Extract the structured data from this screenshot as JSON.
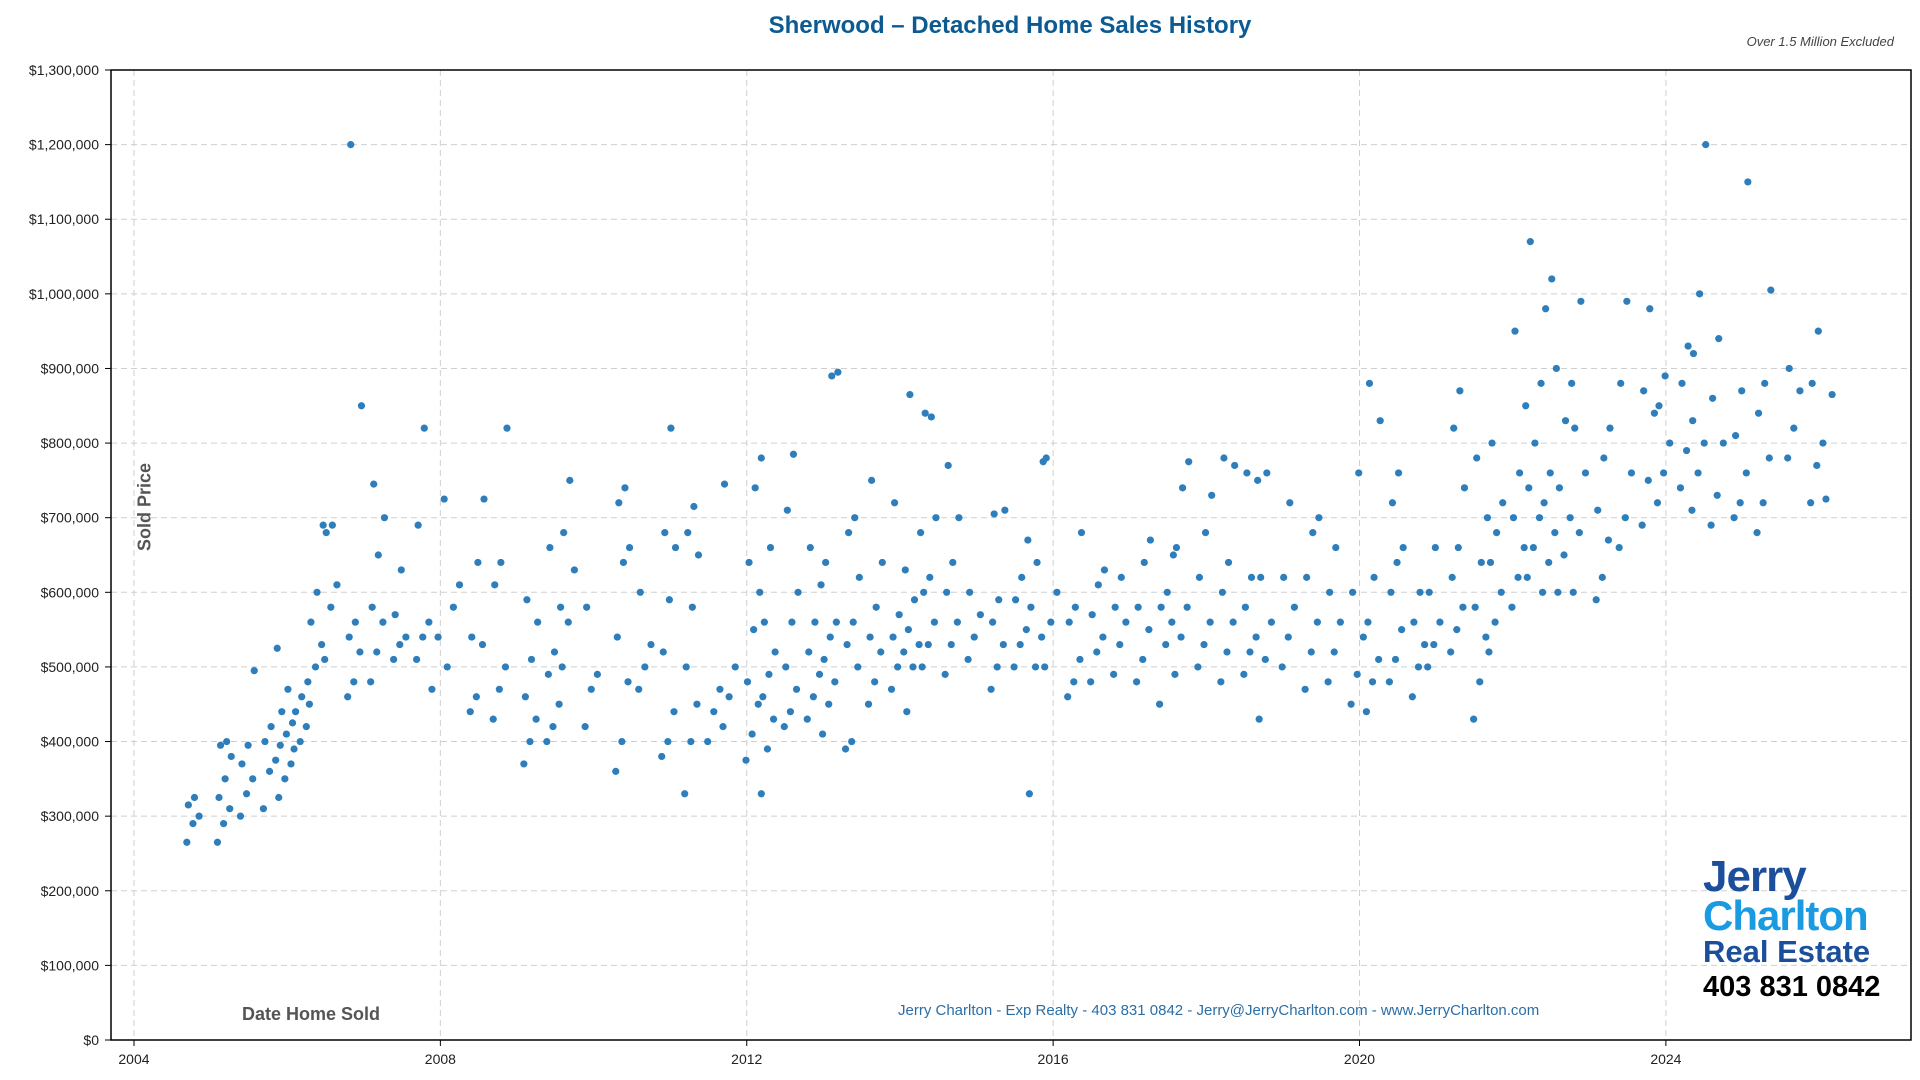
{
  "title": "Sherwood – Detached Home Sales History",
  "note": "Over 1.5 Million Excluded",
  "footer": "Jerry Charlton - Exp Realty - 403 831 0842 - Jerry@JerryCharlton.com - www.JerryCharlton.com",
  "logo": {
    "line1": "Jerry",
    "line2": "Charlton",
    "line3": "Real Estate",
    "phone": "403 831 0842"
  },
  "chart_data": {
    "type": "scatter",
    "title": "Sherwood – Detached Home Sales History",
    "xlabel": "Date Home Sold",
    "ylabel": "Sold Price",
    "xlim": [
      2003.7,
      2027.2
    ],
    "ylim": [
      0,
      1300000
    ],
    "grid": true,
    "color": "#2e7ebc",
    "x_ticks": [
      "2004",
      "2008",
      "2012",
      "2016",
      "2020",
      "2024"
    ],
    "x_tick_values": [
      2004,
      2008,
      2012,
      2016,
      2020,
      2024
    ],
    "y_ticks": [
      "$0",
      "$100,000",
      "$200,000",
      "$300,000",
      "$400,000",
      "$500,000",
      "$600,000",
      "$700,000",
      "$800,000",
      "$900,000",
      "$1,000,000",
      "$1,100,000",
      "$1,200,000",
      "$1,300,000"
    ],
    "y_tick_values": [
      0,
      100000,
      200000,
      300000,
      400000,
      500000,
      600000,
      700000,
      800000,
      900000,
      1000000,
      1100000,
      1200000,
      1300000
    ],
    "point_groups": [
      [
        2004.8,
        [
          265000,
          290000,
          300000,
          315000,
          325000
        ]
      ],
      [
        2005.2,
        [
          265000,
          290000,
          310000,
          325000,
          350000,
          380000,
          395000,
          400000
        ]
      ],
      [
        2005.5,
        [
          300000,
          330000,
          350000,
          370000,
          395000,
          495000
        ]
      ],
      [
        2005.8,
        [
          310000,
          360000,
          375000,
          400000,
          420000,
          525000
        ]
      ],
      [
        2006.0,
        [
          325000,
          350000,
          370000,
          395000,
          410000,
          425000,
          440000,
          470000
        ]
      ],
      [
        2006.2,
        [
          390000,
          400000,
          420000,
          440000,
          460000,
          480000
        ]
      ],
      [
        2006.4,
        [
          450000,
          500000,
          530000,
          560000,
          600000,
          690000
        ]
      ],
      [
        2006.6,
        [
          510000,
          580000,
          610000,
          680000,
          690000
        ]
      ],
      [
        2006.9,
        [
          460000,
          480000,
          520000,
          540000,
          560000,
          850000,
          1200000
        ]
      ],
      [
        2007.2,
        [
          480000,
          520000,
          560000,
          580000,
          650000,
          700000,
          745000
        ]
      ],
      [
        2007.5,
        [
          510000,
          530000,
          540000,
          570000,
          630000
        ]
      ],
      [
        2007.8,
        [
          510000,
          540000,
          560000,
          690000,
          820000
        ]
      ],
      [
        2008.0,
        [
          470000,
          540000,
          725000
        ]
      ],
      [
        2008.2,
        [
          500000,
          580000,
          610000
        ]
      ],
      [
        2008.5,
        [
          440000,
          460000,
          530000,
          540000,
          640000,
          725000
        ]
      ],
      [
        2008.8,
        [
          430000,
          470000,
          500000,
          610000,
          640000,
          820000
        ]
      ],
      [
        2009.2,
        [
          370000,
          400000,
          430000,
          460000,
          510000,
          560000,
          590000
        ]
      ],
      [
        2009.5,
        [
          400000,
          420000,
          450000,
          490000,
          520000,
          580000,
          660000
        ]
      ],
      [
        2009.7,
        [
          500000,
          560000,
          630000,
          680000,
          750000
        ]
      ],
      [
        2010.0,
        [
          420000,
          470000,
          490000,
          580000
        ]
      ],
      [
        2010.4,
        [
          360000,
          400000,
          480000,
          540000,
          640000,
          660000,
          720000,
          740000
        ]
      ],
      [
        2010.7,
        [
          470000,
          500000,
          530000,
          600000
        ]
      ],
      [
        2011.0,
        [
          380000,
          400000,
          440000,
          520000,
          590000,
          660000,
          680000,
          820000
        ]
      ],
      [
        2011.3,
        [
          330000,
          400000,
          450000,
          500000,
          580000,
          650000,
          680000,
          715000
        ]
      ],
      [
        2011.6,
        [
          400000,
          440000,
          470000
        ]
      ],
      [
        2011.8,
        [
          420000,
          460000,
          500000,
          745000
        ]
      ],
      [
        2012.1,
        [
          375000,
          410000,
          450000,
          480000,
          550000,
          600000,
          640000,
          740000,
          780000
        ]
      ],
      [
        2012.3,
        [
          330000,
          390000,
          430000,
          460000,
          490000,
          520000,
          560000,
          660000
        ]
      ],
      [
        2012.6,
        [
          420000,
          440000,
          470000,
          500000,
          560000,
          600000,
          710000,
          785000
        ]
      ],
      [
        2012.9,
        [
          430000,
          460000,
          490000,
          520000,
          560000,
          610000,
          660000
        ]
      ],
      [
        2013.1,
        [
          410000,
          450000,
          480000,
          510000,
          540000,
          560000,
          640000,
          890000,
          895000
        ]
      ],
      [
        2013.4,
        [
          390000,
          400000,
          500000,
          530000,
          560000,
          620000,
          680000,
          700000
        ]
      ],
      [
        2013.7,
        [
          450000,
          480000,
          520000,
          540000,
          580000,
          640000,
          750000
        ]
      ],
      [
        2014.0,
        [
          470000,
          500000,
          520000,
          540000,
          570000,
          630000,
          720000
        ]
      ],
      [
        2014.2,
        [
          440000,
          500000,
          530000,
          550000,
          590000,
          680000,
          865000
        ]
      ],
      [
        2014.4,
        [
          500000,
          530000,
          560000,
          600000,
          620000,
          700000,
          840000,
          835000
        ]
      ],
      [
        2014.7,
        [
          490000,
          530000,
          560000,
          600000,
          640000,
          700000,
          770000
        ]
      ],
      [
        2015.0,
        [
          510000,
          540000,
          570000,
          600000
        ]
      ],
      [
        2015.3,
        [
          470000,
          500000,
          530000,
          560000,
          590000,
          710000,
          705000
        ]
      ],
      [
        2015.6,
        [
          500000,
          530000,
          550000,
          590000,
          620000,
          670000
        ]
      ],
      [
        2015.8,
        [
          330000,
          500000,
          540000,
          580000,
          640000,
          775000
        ]
      ],
      [
        2016.0,
        [
          500000,
          560000,
          600000,
          780000
        ]
      ],
      [
        2016.3,
        [
          460000,
          480000,
          510000,
          560000,
          580000,
          680000
        ]
      ],
      [
        2016.6,
        [
          480000,
          520000,
          540000,
          570000,
          610000,
          630000
        ]
      ],
      [
        2016.9,
        [
          490000,
          530000,
          560000,
          580000,
          620000
        ]
      ],
      [
        2017.2,
        [
          480000,
          510000,
          550000,
          580000,
          640000,
          670000
        ]
      ],
      [
        2017.5,
        [
          450000,
          530000,
          560000,
          580000,
          600000,
          650000
        ]
      ],
      [
        2017.7,
        [
          490000,
          540000,
          580000,
          660000,
          740000,
          775000
        ]
      ],
      [
        2018.0,
        [
          500000,
          530000,
          560000,
          620000,
          680000,
          730000
        ]
      ],
      [
        2018.3,
        [
          480000,
          520000,
          560000,
          600000,
          640000,
          770000,
          780000
        ]
      ],
      [
        2018.6,
        [
          490000,
          520000,
          540000,
          580000,
          620000,
          750000,
          760000
        ]
      ],
      [
        2018.8,
        [
          430000,
          510000,
          560000,
          620000,
          760000
        ]
      ],
      [
        2019.1,
        [
          500000,
          540000,
          580000,
          620000,
          720000
        ]
      ],
      [
        2019.4,
        [
          470000,
          520000,
          560000,
          620000,
          680000,
          700000
        ]
      ],
      [
        2019.7,
        [
          480000,
          520000,
          560000,
          600000,
          660000
        ]
      ],
      [
        2020.0,
        [
          450000,
          490000,
          540000,
          600000,
          760000
        ]
      ],
      [
        2020.2,
        [
          440000,
          480000,
          510000,
          560000,
          620000,
          830000,
          880000
        ]
      ],
      [
        2020.5,
        [
          480000,
          510000,
          550000,
          600000,
          640000,
          660000,
          720000,
          760000
        ]
      ],
      [
        2020.8,
        [
          460000,
          500000,
          530000,
          560000,
          600000
        ]
      ],
      [
        2021.0,
        [
          500000,
          530000,
          560000,
          600000,
          660000
        ]
      ],
      [
        2021.3,
        [
          520000,
          550000,
          580000,
          620000,
          660000,
          740000,
          820000,
          870000
        ]
      ],
      [
        2021.6,
        [
          430000,
          480000,
          540000,
          580000,
          640000,
          700000,
          780000
        ]
      ],
      [
        2021.8,
        [
          520000,
          560000,
          600000,
          640000,
          680000,
          720000,
          800000
        ]
      ],
      [
        2022.1,
        [
          580000,
          620000,
          660000,
          700000,
          760000,
          850000,
          950000
        ]
      ],
      [
        2022.3,
        [
          620000,
          660000,
          700000,
          740000,
          800000,
          880000,
          1070000
        ]
      ],
      [
        2022.5,
        [
          600000,
          640000,
          680000,
          720000,
          760000,
          900000,
          980000,
          1020000
        ]
      ],
      [
        2022.7,
        [
          600000,
          650000,
          700000,
          740000,
          830000,
          880000
        ]
      ],
      [
        2022.9,
        [
          600000,
          680000,
          760000,
          820000,
          990000
        ]
      ],
      [
        2023.2,
        [
          590000,
          620000,
          670000,
          710000,
          780000,
          820000
        ]
      ],
      [
        2023.5,
        [
          660000,
          700000,
          760000,
          880000,
          990000
        ]
      ],
      [
        2023.8,
        [
          690000,
          750000,
          840000,
          870000,
          980000
        ]
      ],
      [
        2024.0,
        [
          720000,
          760000,
          800000,
          850000,
          890000
        ]
      ],
      [
        2024.3,
        [
          740000,
          790000,
          830000,
          880000,
          930000
        ]
      ],
      [
        2024.45,
        [
          710000,
          760000,
          800000,
          920000,
          1000000,
          1200000
        ]
      ],
      [
        2024.7,
        [
          690000,
          730000,
          800000,
          860000,
          940000
        ]
      ],
      [
        2025.0,
        [
          700000,
          720000,
          760000,
          810000,
          870000,
          1150000
        ]
      ],
      [
        2025.3,
        [
          680000,
          720000,
          780000,
          840000,
          880000,
          1005000
        ]
      ],
      [
        2025.7,
        [
          780000,
          820000,
          870000,
          900000
        ]
      ],
      [
        2026.0,
        [
          720000,
          770000,
          800000,
          880000,
          950000
        ]
      ],
      [
        2026.2,
        [
          725000,
          865000
        ]
      ]
    ]
  }
}
